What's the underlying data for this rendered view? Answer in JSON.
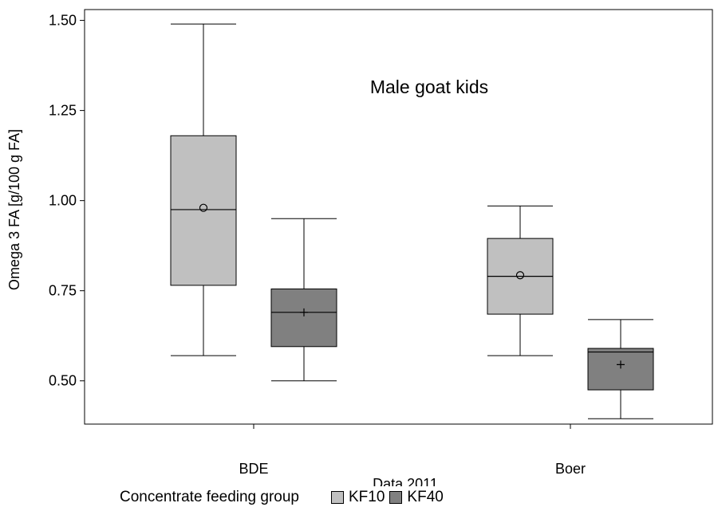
{
  "chart_data": {
    "type": "box",
    "title": "",
    "annotation": "Male goat kids",
    "xlabel": "Data 2011",
    "ylabel": "Omega 3 FA  [g/100 g FA]",
    "ylim": [
      0.38,
      1.53
    ],
    "yticks": [
      0.5,
      0.75,
      1.0,
      1.25,
      1.5
    ],
    "ytick_labels": [
      "0.50",
      "0.75",
      "1.00",
      "1.25",
      "1.50"
    ],
    "categories": [
      "BDE",
      "Boer"
    ],
    "legend_title": "Concentrate feeding group",
    "legend_position": "bottom",
    "grid": false,
    "series": [
      {
        "name": "KF10",
        "color": "#c0c0c0",
        "mean_marker": "circle",
        "boxes": [
          {
            "category": "BDE",
            "min": 0.57,
            "q1": 0.765,
            "median": 0.975,
            "q3": 1.18,
            "max": 1.49,
            "mean": 0.98
          },
          {
            "category": "Boer",
            "min": 0.57,
            "q1": 0.685,
            "median": 0.79,
            "q3": 0.895,
            "max": 0.985,
            "mean": 0.793
          }
        ]
      },
      {
        "name": "KF40",
        "color": "#808080",
        "mean_marker": "plus",
        "boxes": [
          {
            "category": "BDE",
            "min": 0.5,
            "q1": 0.595,
            "median": 0.69,
            "q3": 0.755,
            "max": 0.95,
            "mean": 0.69
          },
          {
            "category": "Boer",
            "min": 0.395,
            "q1": 0.475,
            "median": 0.58,
            "q3": 0.59,
            "max": 0.67,
            "mean": 0.545
          }
        ]
      }
    ]
  }
}
